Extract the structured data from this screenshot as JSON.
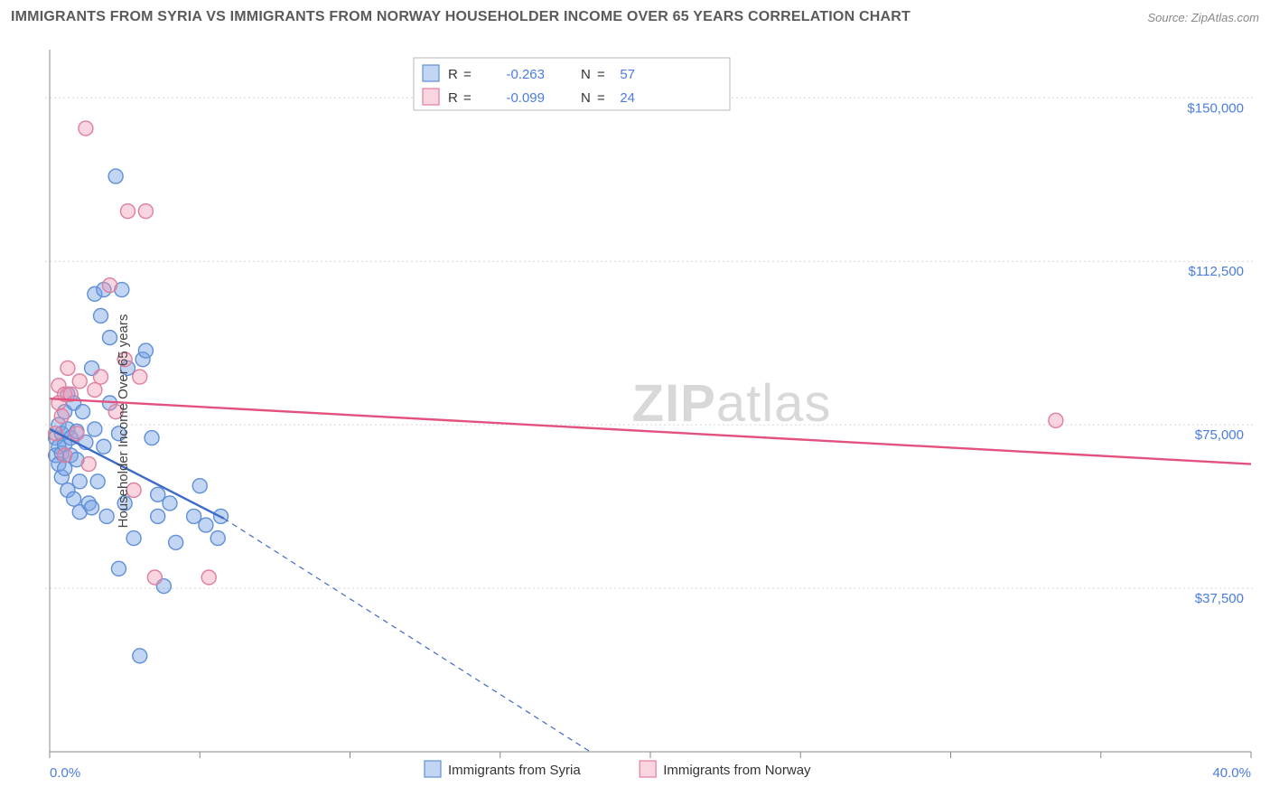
{
  "title": "IMMIGRANTS FROM SYRIA VS IMMIGRANTS FROM NORWAY HOUSEHOLDER INCOME OVER 65 YEARS CORRELATION CHART",
  "source": "Source: ZipAtlas.com",
  "y_axis_label": "Householder Income Over 65 years",
  "watermark_a": "ZIP",
  "watermark_b": "atlas",
  "chart": {
    "type": "scatter",
    "background_color": "#ffffff",
    "grid_color": "#d5d5d5",
    "axis_color": "#888888",
    "tick_label_color": "#4a7ce0",
    "xlim": [
      0,
      40
    ],
    "ylim": [
      0,
      160000
    ],
    "x_ticks_minor_step": 5,
    "y_ticks": [
      {
        "value": 37500,
        "label": "$37,500"
      },
      {
        "value": 75000,
        "label": "$75,000"
      },
      {
        "value": 112500,
        "label": "$112,500"
      },
      {
        "value": 150000,
        "label": "$150,000"
      }
    ],
    "x_tick_labels": [
      {
        "value": 0,
        "label": "0.0%"
      },
      {
        "value": 40,
        "label": "40.0%"
      }
    ],
    "marker_radius": 8,
    "marker_stroke_width": 1.4,
    "trend_line_width": 2.4,
    "dashed_line_width": 1.2,
    "series": [
      {
        "key": "syria",
        "label": "Immigrants from Syria",
        "fill": "rgba(120,165,230,0.45)",
        "stroke": "#5f8fd8",
        "line_color": "#3e6bc7",
        "R": "-0.263",
        "N": "57",
        "trend": {
          "x1": 0,
          "y1": 74000,
          "x2": 5.8,
          "y2": 53500
        },
        "trend_dashed": {
          "x1": 5.8,
          "y1": 53500,
          "x2": 18.0,
          "y2": 0
        },
        "points": [
          [
            0.2,
            72000
          ],
          [
            0.2,
            68000
          ],
          [
            0.3,
            66000
          ],
          [
            0.3,
            70000
          ],
          [
            0.3,
            75000
          ],
          [
            0.4,
            63000
          ],
          [
            0.4,
            68500
          ],
          [
            0.4,
            73000
          ],
          [
            0.5,
            78000
          ],
          [
            0.5,
            65000
          ],
          [
            0.5,
            70500
          ],
          [
            0.6,
            82000
          ],
          [
            0.6,
            60000
          ],
          [
            0.6,
            74000
          ],
          [
            0.7,
            72000
          ],
          [
            0.7,
            68000
          ],
          [
            0.8,
            58000
          ],
          [
            0.8,
            80000
          ],
          [
            0.9,
            67000
          ],
          [
            0.9,
            73500
          ],
          [
            1.0,
            55000
          ],
          [
            1.0,
            62000
          ],
          [
            1.1,
            78000
          ],
          [
            1.2,
            71000
          ],
          [
            1.3,
            57000
          ],
          [
            1.4,
            88000
          ],
          [
            1.4,
            56000
          ],
          [
            1.5,
            74000
          ],
          [
            1.5,
            105000
          ],
          [
            1.6,
            62000
          ],
          [
            1.7,
            100000
          ],
          [
            1.8,
            106000
          ],
          [
            1.8,
            70000
          ],
          [
            1.9,
            54000
          ],
          [
            2.0,
            80000
          ],
          [
            2.0,
            95000
          ],
          [
            2.2,
            132000
          ],
          [
            2.3,
            73000
          ],
          [
            2.3,
            42000
          ],
          [
            2.4,
            106000
          ],
          [
            2.5,
            57000
          ],
          [
            2.6,
            88000
          ],
          [
            2.8,
            49000
          ],
          [
            3.0,
            22000
          ],
          [
            3.1,
            90000
          ],
          [
            3.2,
            92000
          ],
          [
            3.4,
            72000
          ],
          [
            3.6,
            59000
          ],
          [
            3.6,
            54000
          ],
          [
            3.8,
            38000
          ],
          [
            4.0,
            57000
          ],
          [
            4.2,
            48000
          ],
          [
            4.8,
            54000
          ],
          [
            5.0,
            61000
          ],
          [
            5.2,
            52000
          ],
          [
            5.6,
            49000
          ],
          [
            5.7,
            54000
          ]
        ]
      },
      {
        "key": "norway",
        "label": "Immigrants from Norway",
        "fill": "rgba(240,150,175,0.40)",
        "stroke": "#e07e9c",
        "line_color": "#e3527e",
        "R": "-0.099",
        "N": "24",
        "trend": {
          "x1": 0,
          "y1": 81000,
          "x2": 40,
          "y2": 66000
        },
        "points": [
          [
            0.2,
            73000
          ],
          [
            0.3,
            80000
          ],
          [
            0.3,
            84000
          ],
          [
            0.4,
            77000
          ],
          [
            0.5,
            82000
          ],
          [
            0.5,
            68000
          ],
          [
            0.6,
            88000
          ],
          [
            0.7,
            82000
          ],
          [
            0.9,
            73000
          ],
          [
            1.0,
            85000
          ],
          [
            1.2,
            143000
          ],
          [
            1.3,
            66000
          ],
          [
            1.5,
            83000
          ],
          [
            1.7,
            86000
          ],
          [
            2.0,
            107000
          ],
          [
            2.2,
            78000
          ],
          [
            2.5,
            90000
          ],
          [
            2.6,
            124000
          ],
          [
            2.8,
            60000
          ],
          [
            3.0,
            86000
          ],
          [
            3.2,
            124000
          ],
          [
            3.5,
            40000
          ],
          [
            5.3,
            40000
          ],
          [
            33.5,
            76000
          ]
        ]
      }
    ]
  },
  "legend_top": {
    "R_label": "R",
    "N_label": "N",
    "eq": "="
  }
}
